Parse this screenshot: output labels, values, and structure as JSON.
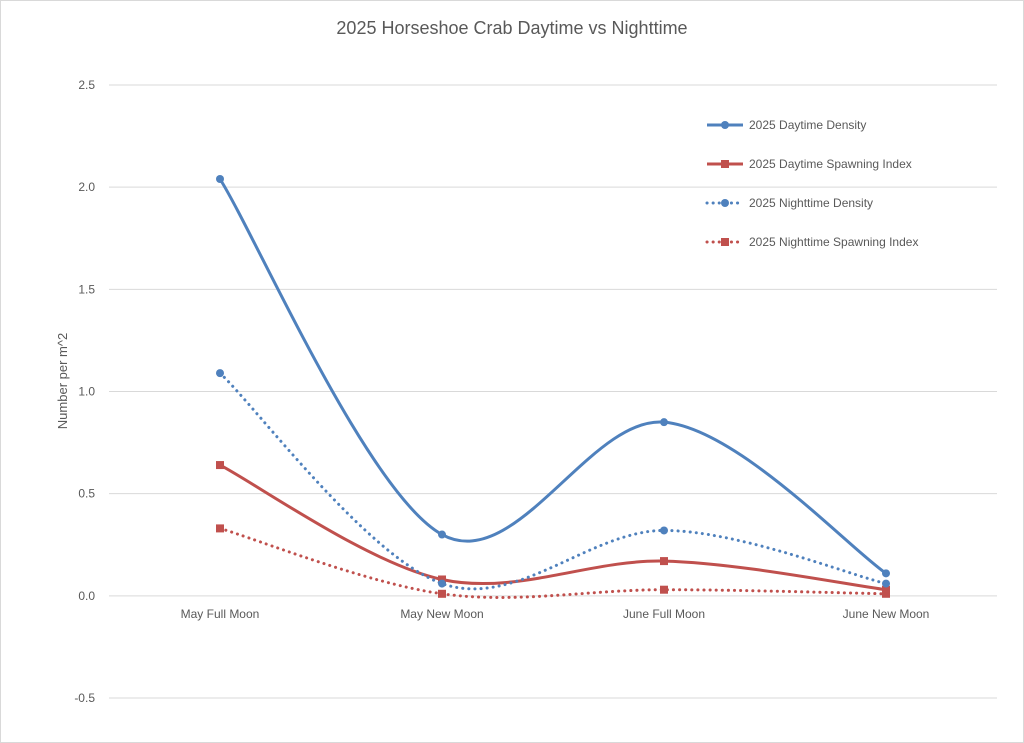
{
  "chart_data": {
    "type": "line",
    "title": "2025 Horseshoe Crab Daytime vs Nighttime",
    "xlabel": "",
    "ylabel": "Number per m^2",
    "categories": [
      "May Full Moon",
      "May New Moon",
      "June Full Moon",
      "June New Moon"
    ],
    "ylim": [
      -0.5,
      2.5
    ],
    "yticks": [
      "2.5",
      "2.0",
      "1.5",
      "1.0",
      "0.5",
      "0.0",
      "-0.5"
    ],
    "ytick_values": [
      2.5,
      2.0,
      1.5,
      1.0,
      0.5,
      0.0,
      -0.5
    ],
    "grid": true,
    "legend_position": "top-right",
    "smooth": true,
    "series": [
      {
        "name": "2025 Daytime Density",
        "values": [
          2.04,
          0.3,
          0.85,
          0.11
        ],
        "color": "#4f81bd",
        "marker": "circle",
        "dash": "solid"
      },
      {
        "name": "2025 Daytime Spawning Index",
        "values": [
          0.64,
          0.08,
          0.17,
          0.03
        ],
        "color": "#c0504d",
        "marker": "square",
        "dash": "solid"
      },
      {
        "name": "2025 Nighttime Density",
        "values": [
          1.09,
          0.06,
          0.32,
          0.06
        ],
        "color": "#4f81bd",
        "marker": "circle",
        "dash": "dotted"
      },
      {
        "name": "2025 Nighttime Spawning Index",
        "values": [
          0.33,
          0.01,
          0.03,
          0.01
        ],
        "color": "#c0504d",
        "marker": "square",
        "dash": "dotted"
      }
    ]
  }
}
